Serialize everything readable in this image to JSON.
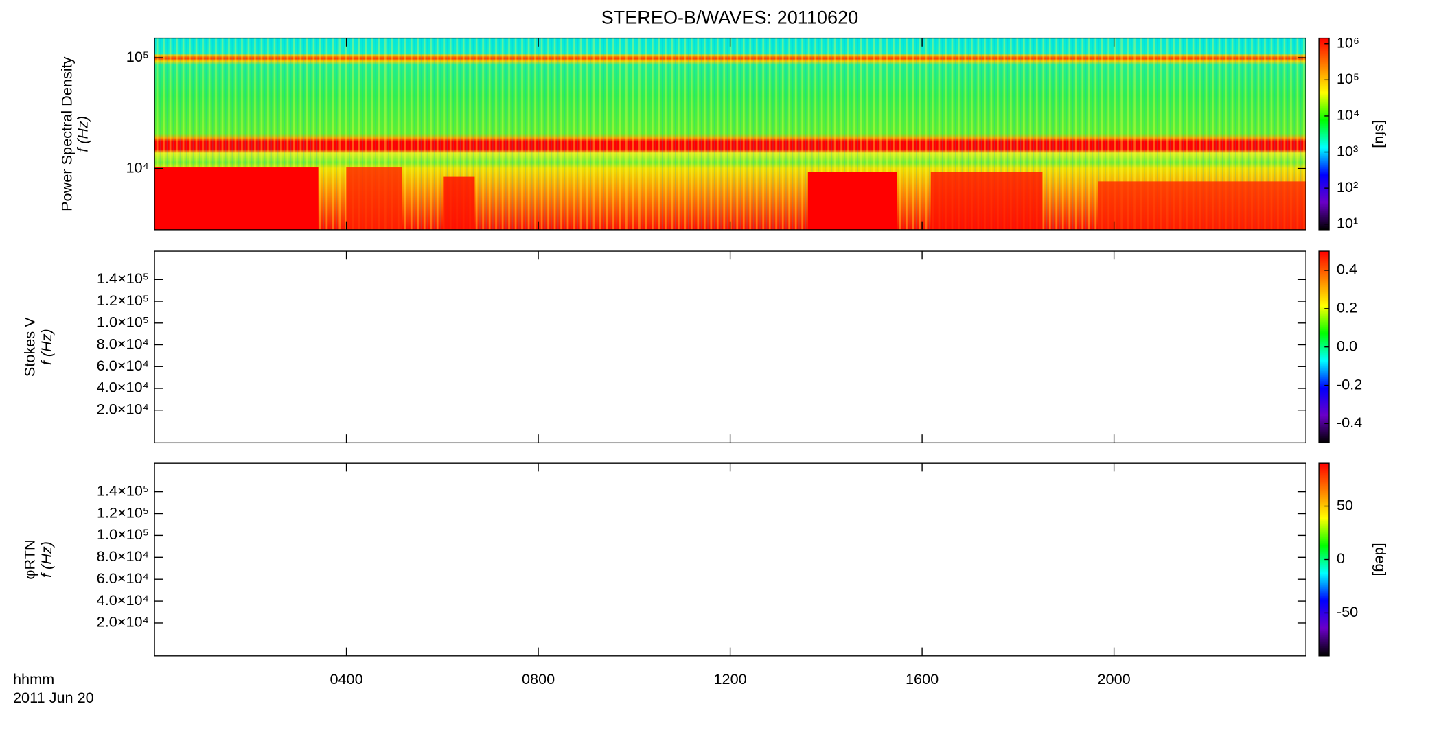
{
  "chart_data": {
    "type": "spectrogram",
    "title": "STEREO-B/WAVES: 20110620",
    "x_label": "hhmm",
    "x_sublabel": "2011 Jun 20",
    "xlim": [
      0,
      24
    ],
    "xticks": [
      {
        "value": 4,
        "label": "0400"
      },
      {
        "value": 8,
        "label": "0800"
      },
      {
        "value": 12,
        "label": "1200"
      },
      {
        "value": 16,
        "label": "1600"
      },
      {
        "value": 20,
        "label": "2000"
      }
    ],
    "colormap": [
      "#000000",
      "#6a00c8",
      "#0000ff",
      "#00ffff",
      "#00ff00",
      "#ffff00",
      "#ff8000",
      "#ff0000"
    ],
    "panels": [
      {
        "ylabel": "Power Spectral Density",
        "ylabel2": "f (Hz)",
        "ylog": true,
        "ylim": [
          2800,
          150000
        ],
        "yticks": [
          {
            "value": 10000,
            "label": "10⁴"
          },
          {
            "value": 100000,
            "label": "10⁵"
          }
        ],
        "zlog": true,
        "zlim": [
          7,
          1430000
        ],
        "zticks": [
          {
            "value": 10,
            "label": "10¹"
          },
          {
            "value": 100,
            "label": "10²"
          },
          {
            "value": 1000,
            "label": "10³"
          },
          {
            "value": 10000,
            "label": "10⁴"
          },
          {
            "value": 100000,
            "label": "10⁵"
          },
          {
            "value": 1000000,
            "label": "10⁶"
          }
        ],
        "zlabel": "[sfu]"
      },
      {
        "ylabel": "Stokes V",
        "ylabel2": "f (Hz)",
        "ylog": false,
        "ylim": [
          -10000,
          166000
        ],
        "yticks": [
          {
            "value": 20000,
            "label": "2.0×10⁴"
          },
          {
            "value": 40000,
            "label": "4.0×10⁴"
          },
          {
            "value": 60000,
            "label": "6.0×10⁴"
          },
          {
            "value": 80000,
            "label": "8.0×10⁴"
          },
          {
            "value": 100000,
            "label": "1.0×10⁵"
          },
          {
            "value": 120000,
            "label": "1.2×10⁵"
          },
          {
            "value": 140000,
            "label": "1.4×10⁵"
          }
        ],
        "zlog": false,
        "zlim": [
          -0.5,
          0.5
        ],
        "zticks": [
          -0.4,
          -0.2,
          {
            "value": 0,
            "label": "0.0"
          },
          0.2,
          0.4
        ]
      },
      {
        "ylabel": "φRTN",
        "ylabel2": "f (Hz)",
        "ylog": false,
        "ylim": [
          -10000,
          166000
        ],
        "yticks": [
          {
            "value": 20000,
            "label": "2.0×10⁴"
          },
          {
            "value": 40000,
            "label": "4.0×10⁴"
          },
          {
            "value": 60000,
            "label": "6.0×10⁴"
          },
          {
            "value": 80000,
            "label": "8.0×10⁴"
          },
          {
            "value": 100000,
            "label": "1.0×10⁵"
          },
          {
            "value": 120000,
            "label": "1.2×10⁵"
          },
          {
            "value": 140000,
            "label": "1.4×10⁵"
          }
        ],
        "zlog": false,
        "zlim": [
          -90,
          90
        ],
        "zticks": [
          -50,
          0,
          50
        ],
        "zlabel": "[deg]"
      }
    ]
  }
}
